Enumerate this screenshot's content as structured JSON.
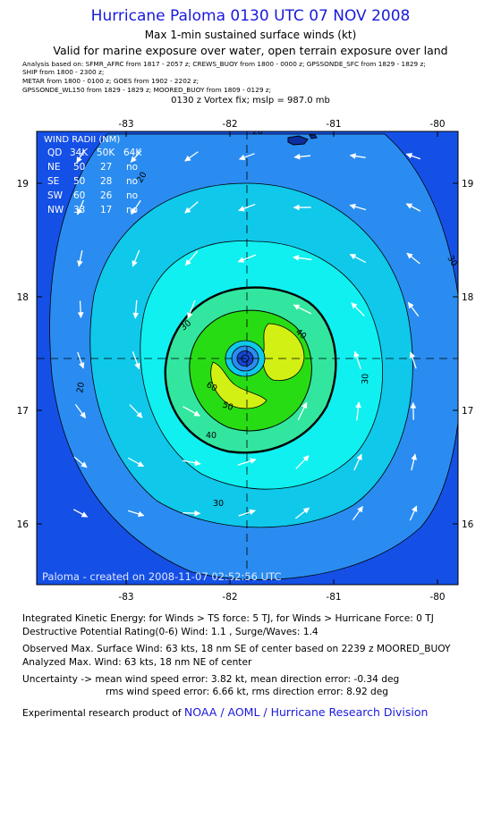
{
  "header": {
    "title": "Hurricane Paloma 0130 UTC 07 NOV 2008",
    "subtitle1": "Max 1-min sustained surface winds (kt)",
    "subtitle2": "Valid for marine exposure over water, open terrain exposure over land",
    "analysis_lines": [
      "Analysis based on: SFMR_AFRC from 1817 - 2057 z; CREWS_BUOY from 1800 - 0000 z; GPSSONDE_SFC from 1829 - 1829 z;",
      "SHIP from 1800 - 2300 z;",
      "METAR from 1800 - 0100 z; GOES from 1902 - 2202 z;",
      "GPSSONDE_WL150 from 1829 - 1829 z; MOORED_BUOY from 1809 - 0129 z;"
    ],
    "vortex_fix": "0130 z Vortex fix; mslp = 987.0 mb"
  },
  "map": {
    "lon_ticks": [
      "-83",
      "-82",
      "-81",
      "-80"
    ],
    "lat_ticks": [
      "19",
      "18",
      "17",
      "16"
    ],
    "lon_values": [
      -83,
      -82,
      -81,
      -80
    ],
    "lat_values": [
      19,
      18,
      17,
      16
    ],
    "center_lon": -81.8,
    "center_lat": 17.45,
    "contour_labels": [
      "20",
      "20",
      "20",
      "30",
      "30",
      "30",
      "30",
      "40",
      "40",
      "50",
      "60"
    ],
    "wind_radii": {
      "title": "WIND RADII (NM)",
      "header": [
        "QD",
        "34K",
        "50K",
        "64K"
      ],
      "rows": [
        [
          "NE",
          "50",
          "27",
          "no"
        ],
        [
          "SE",
          "50",
          "28",
          "no"
        ],
        [
          "SW",
          "60",
          "26",
          "no"
        ],
        [
          "NW",
          "33",
          "17",
          "no"
        ]
      ]
    },
    "credit": "Paloma - created on 2008-11-07 02:52:56 UTC",
    "colors": {
      "background": "#1550e6",
      "band_20": "#2a8cf0",
      "band_30": "#10c8ea",
      "band_40": "#10f0f0",
      "band_50": "#32e6a0",
      "band_60": "#28dc14",
      "band_70": "#d2f014",
      "core": "#1545d0"
    }
  },
  "footer": {
    "ike": "Integrated Kinetic Energy: for Winds > TS force: 5 TJ, for Winds > Hurricane Force: 0 TJ",
    "dpr": "Destructive Potential Rating(0-6) Wind: 1.1 , Surge/Waves: 1.4",
    "observed": "Observed Max. Surface Wind: 63 kts, 18 nm SE of center based on 2239 z MOORED_BUOY",
    "analyzed": "Analyzed Max. Wind: 63 kts, 18 nm NE of center",
    "uncertainty1": "Uncertainty -> mean wind speed error: 3.82 kt, mean direction error: -0.34 deg",
    "uncertainty2": "rms wind speed error: 6.66 kt, rms direction error: 8.92 deg",
    "product_prefix": "Experimental research product of",
    "product_org": "NOAA / AOML / Hurricane Research Division"
  }
}
